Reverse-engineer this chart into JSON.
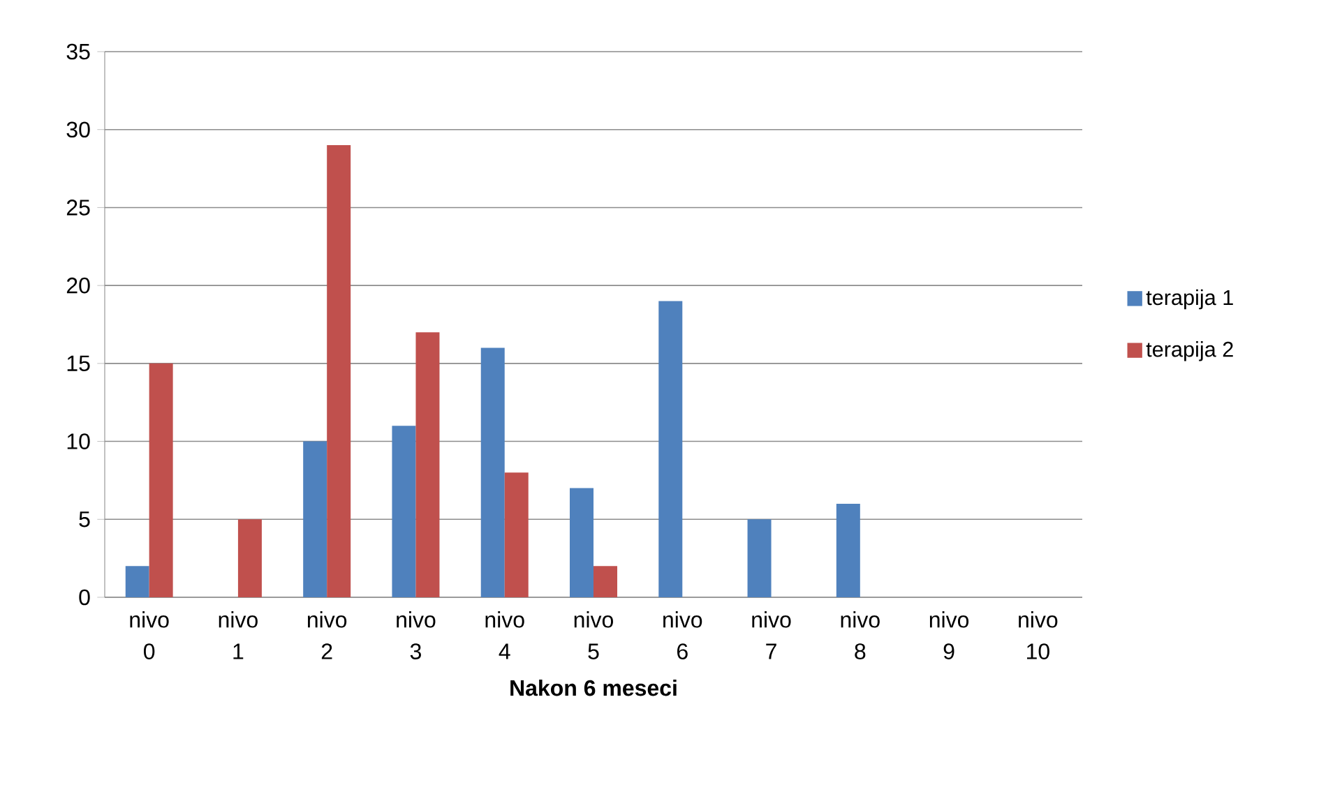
{
  "chart_data": {
    "type": "bar",
    "xlabel": "**Nakon 6 meseci**",
    "categories": [
      "nivo 0",
      "nivo 1",
      "nivo 2",
      "nivo 3",
      "nivo 4",
      "nivo 5",
      "nivo 6",
      "nivo 7",
      "nivo 8",
      "nivo 9",
      "nivo 10"
    ],
    "series": [
      {
        "name": "terapija 1",
        "color": "#4f81bd",
        "values": [
          2,
          0,
          10,
          11,
          16,
          7,
          19,
          5,
          6,
          0,
          0
        ]
      },
      {
        "name": "terapija 2",
        "color": "#c0504d",
        "values": [
          15,
          5,
          29,
          17,
          8,
          2,
          0,
          0,
          0,
          0,
          0
        ]
      }
    ],
    "ylim": [
      0,
      35
    ],
    "yticks": [
      0,
      5,
      10,
      15,
      20,
      25,
      30,
      35
    ],
    "grid": "y",
    "legend": "right"
  }
}
